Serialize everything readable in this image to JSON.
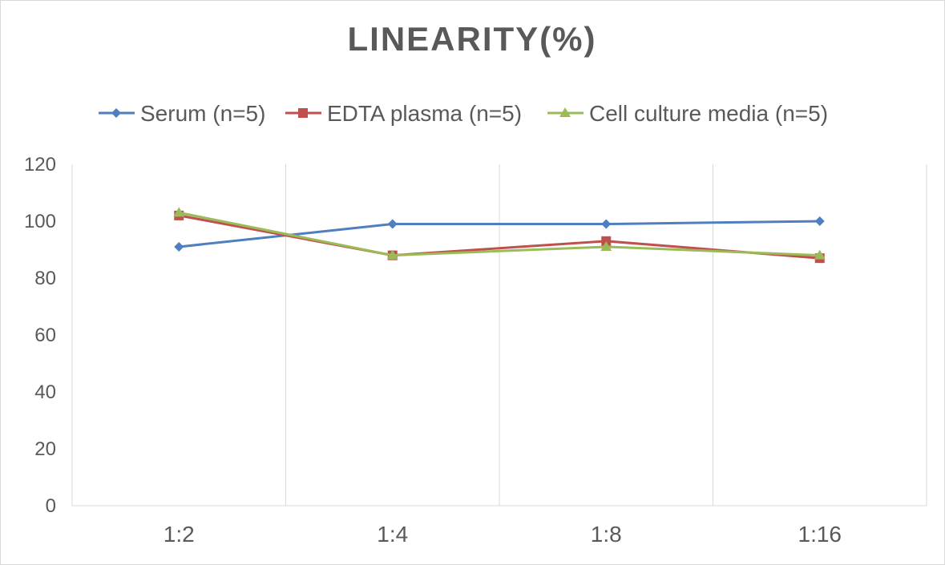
{
  "chart_data": {
    "type": "line",
    "title": "LINEARITY(%)",
    "xlabel": "",
    "ylabel": "",
    "categories": [
      "1:2",
      "1:4",
      "1:8",
      "1:16"
    ],
    "ylim": [
      0,
      120
    ],
    "yticks": [
      0,
      20,
      40,
      60,
      80,
      100,
      120
    ],
    "grid": "vertical",
    "legend_position": "top",
    "series": [
      {
        "name": "Serum (n=5)",
        "values": [
          91,
          99,
          99,
          100
        ],
        "color": "#4f7fbf",
        "marker": "diamond"
      },
      {
        "name": "EDTA plasma (n=5)",
        "values": [
          102,
          88,
          93,
          87
        ],
        "color": "#c0504d",
        "marker": "square"
      },
      {
        "name": "Cell culture media (n=5)",
        "values": [
          103,
          88,
          91,
          88
        ],
        "color": "#9bbb59",
        "marker": "triangle"
      }
    ]
  }
}
